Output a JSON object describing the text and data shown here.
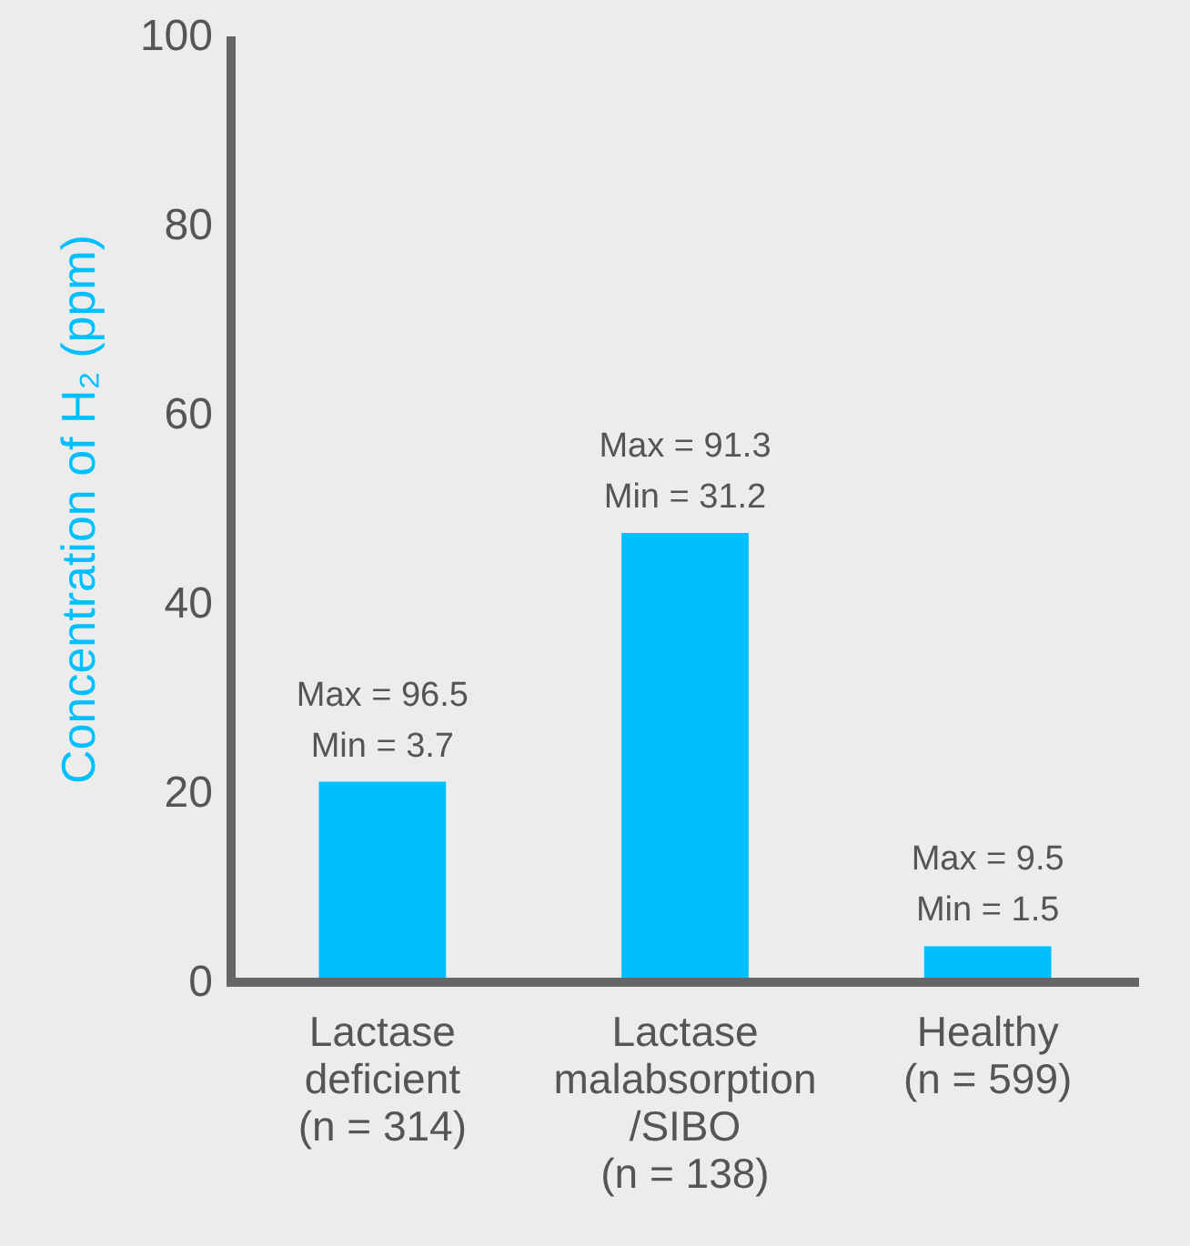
{
  "chart_data": {
    "type": "bar",
    "ylabel": "Concentration of H₂ (ppm)",
    "categories": [
      "Lactase\ndeficient\n(n = 314)",
      "Lactase\nmalabsorption\n/SIBO\n(n = 138)",
      "Healthy\n(n = 599)"
    ],
    "values": [
      21.2,
      47.5,
      3.8
    ],
    "color": "#00bfff",
    "ylim": [
      0,
      100
    ],
    "yticks": [
      0,
      20,
      40,
      60,
      80,
      100
    ],
    "grid": false,
    "annotations": [
      {
        "text": "Max = 96.5\nMin = 3.7",
        "x": "Lactase\ndeficient\n(n = 314)",
        "y": 21.2
      },
      {
        "text": "Max = 91.3\nMin = 31.2",
        "x": "Lactase\nmalabsorption\n/SIBO\n(n = 138)",
        "y": 47.5
      },
      {
        "text": "Max = 9.5\nMin = 1.5",
        "x": "Healthy\n(n = 599)",
        "y": 3.8
      }
    ]
  }
}
